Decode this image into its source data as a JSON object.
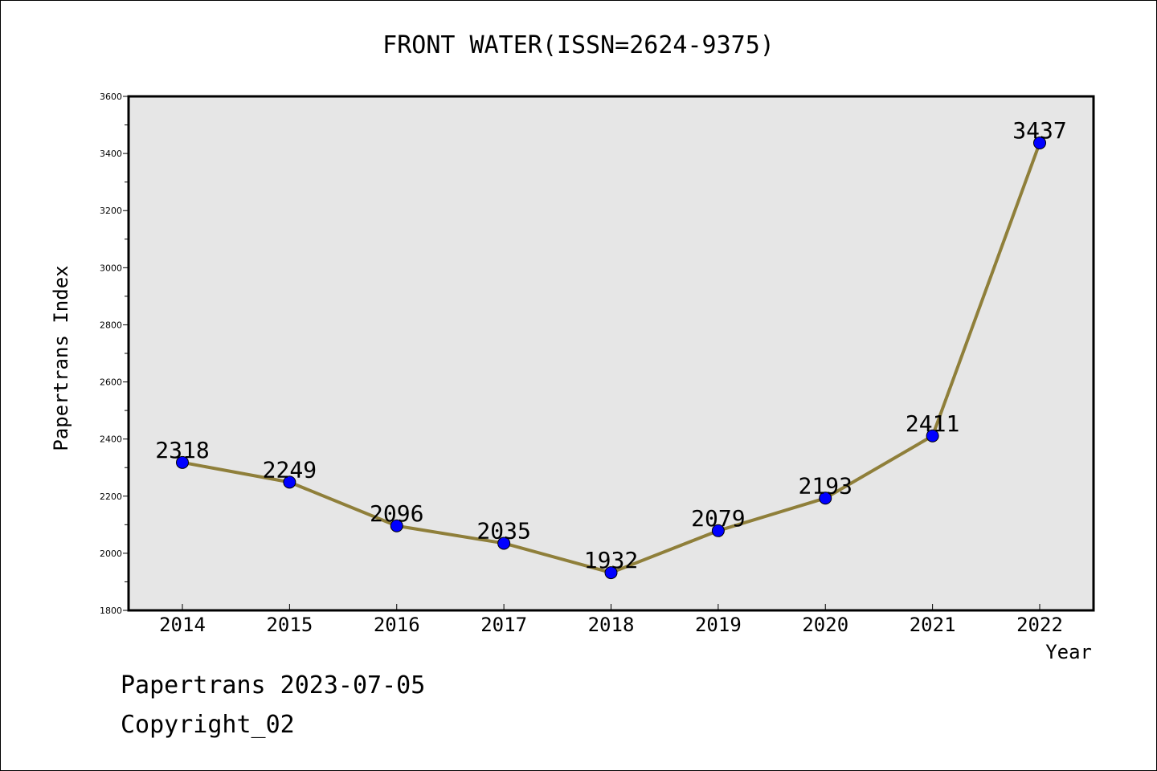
{
  "chart_data": {
    "type": "line",
    "title": "FRONT WATER(ISSN=2624-9375)",
    "xlabel": "Year",
    "ylabel": "Papertrans Index",
    "categories": [
      "2014",
      "2015",
      "2016",
      "2017",
      "2018",
      "2019",
      "2020",
      "2021",
      "2022"
    ],
    "series": [
      {
        "values": [
          2318,
          2249,
          2096,
          2035,
          1932,
          2079,
          2193,
          2411,
          3437
        ]
      }
    ],
    "data_labels": [
      "2318",
      "2249",
      "2096",
      "2035",
      "1932",
      "2079",
      "2193",
      "2411",
      "3437"
    ],
    "ylim": [
      1800,
      3600
    ],
    "yticks": [
      "1800",
      "2000",
      "2200",
      "2400",
      "2600",
      "2800",
      "3000",
      "3200",
      "3400",
      "3600"
    ],
    "grid": false,
    "colors": {
      "line": "#8f7f3a",
      "marker": "#0000ff",
      "plot_background": "#e6e6e6"
    }
  },
  "footer": {
    "date_text": "Papertrans 2023-07-05",
    "copyright_text": "Copyright_02"
  }
}
